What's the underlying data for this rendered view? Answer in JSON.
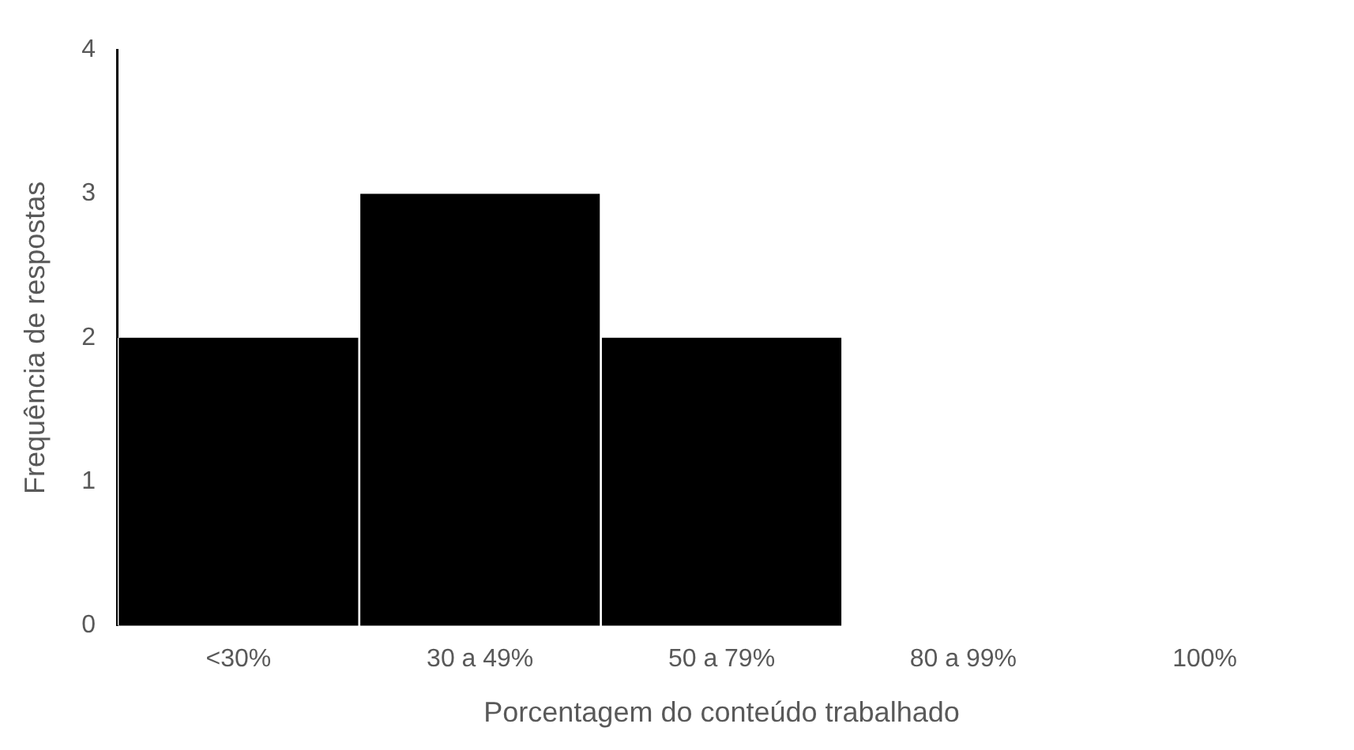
{
  "chart_data": {
    "type": "bar",
    "xlabel": "Porcentagem do conteúdo trabalhado",
    "ylabel": "Frequência de respostas",
    "categories": [
      "<30%",
      "30 a 49%",
      "50 a 79%",
      "80 a 99%",
      "100%"
    ],
    "values": [
      2,
      3,
      2,
      0,
      0
    ],
    "color": "#000000",
    "ylim": [
      0,
      4
    ],
    "yticks": [
      0,
      1,
      2,
      3,
      4
    ],
    "grid": false,
    "legend": false
  }
}
